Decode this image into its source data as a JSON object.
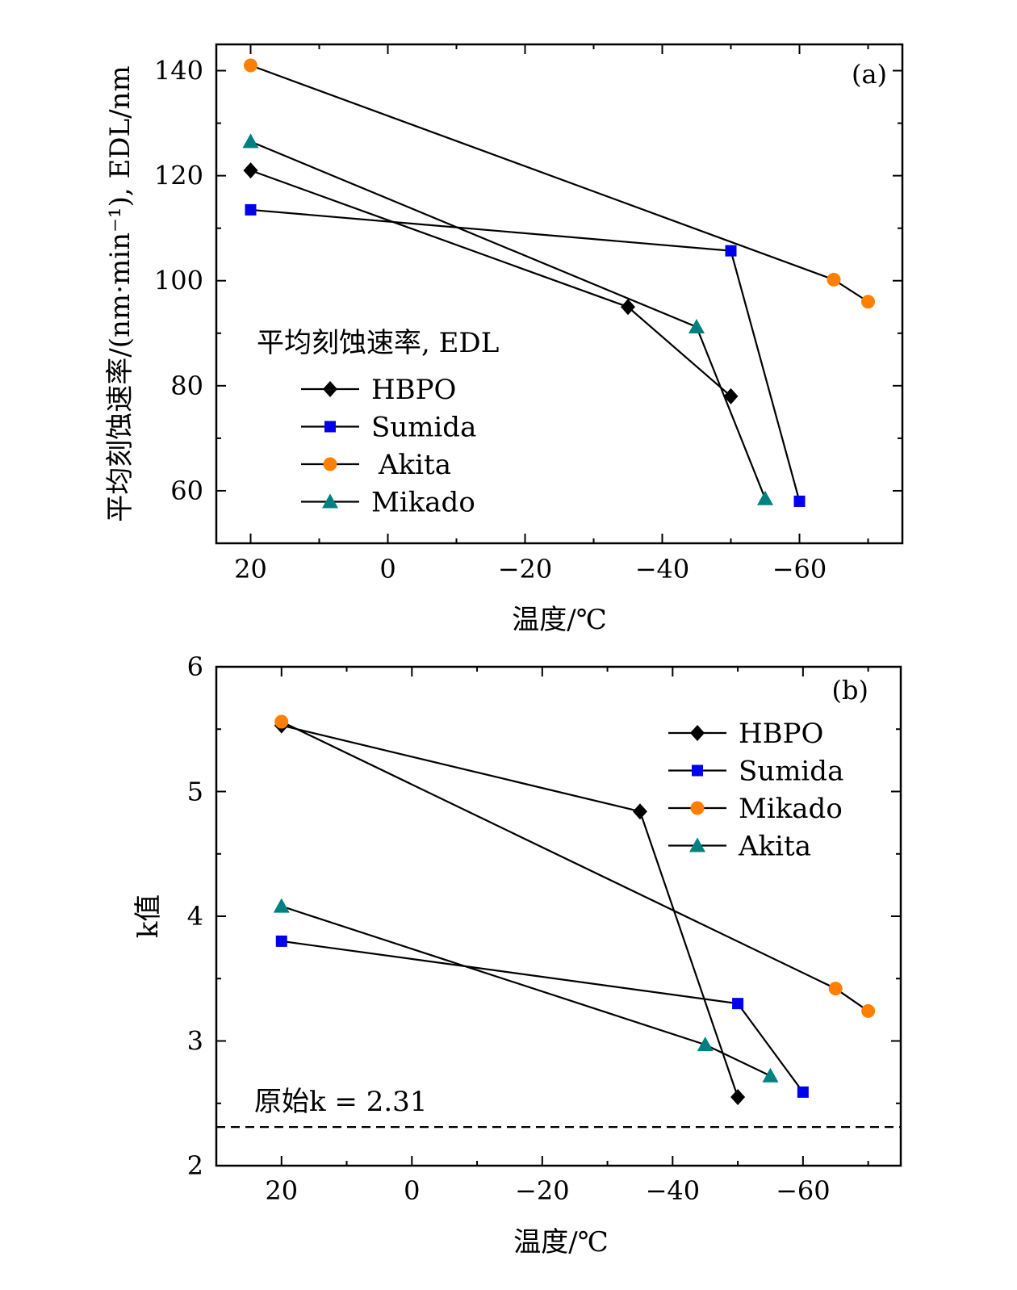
{
  "colors": {
    "hbpo": "#000000",
    "sumida": "#0000ee",
    "akita_orange": "#ff8000",
    "teal": "#008080"
  },
  "chart_data": [
    {
      "type": "line",
      "panel_label": "(a)",
      "xlabel": "温度/℃",
      "ylabel": "平均刻蚀速率/(nm·min⁻¹), EDL/nm",
      "xlim": [
        25,
        -75
      ],
      "ylim": [
        50,
        145
      ],
      "xticks": [
        20,
        0,
        -20,
        -40,
        -60
      ],
      "xtick_labels": [
        "20",
        "0",
        "−20",
        "−40",
        "−60"
      ],
      "yticks": [
        60,
        80,
        100,
        120,
        140
      ],
      "ytick_labels": [
        "60",
        "80",
        "100",
        "120",
        "140"
      ],
      "legend_title": "平均刻蚀速率, EDL",
      "legend_position": "center-left",
      "series": [
        {
          "name": "HBPO",
          "marker": "diamond",
          "color": "#000000",
          "x": [
            20,
            -35,
            -50
          ],
          "values": [
            121,
            95,
            78
          ]
        },
        {
          "name": "Sumida",
          "marker": "square",
          "color": "#0000ee",
          "x": [
            20,
            -50,
            -60
          ],
          "values": [
            113.5,
            105.7,
            58
          ]
        },
        {
          "name": "Akita",
          "marker": "circle",
          "color": "#ff8000",
          "x": [
            20,
            -65,
            -70
          ],
          "values": [
            141,
            100.2,
            96
          ]
        },
        {
          "name": "Mikado",
          "marker": "triangle",
          "color": "#008080",
          "x": [
            20,
            -45,
            -55
          ],
          "values": [
            126.5,
            91.2,
            58.5
          ]
        }
      ]
    },
    {
      "type": "line",
      "panel_label": "(b)",
      "xlabel": "温度/℃",
      "ylabel": "k值",
      "xlim": [
        30,
        -75
      ],
      "ylim": [
        2,
        6
      ],
      "xticks": [
        20,
        0,
        -20,
        -40,
        -60
      ],
      "xtick_labels": [
        "20",
        "0",
        "−20",
        "−40",
        "−60"
      ],
      "yticks": [
        2,
        3,
        4,
        5,
        6
      ],
      "ytick_labels": [
        "2",
        "3",
        "4",
        "5",
        "6"
      ],
      "legend_position": "top-right",
      "reference_line": {
        "value": 2.31,
        "label": "原始k = 2.31",
        "style": "dashed"
      },
      "series": [
        {
          "name": "HBPO",
          "marker": "diamond",
          "color": "#000000",
          "x": [
            20,
            -35,
            -50
          ],
          "values": [
            5.53,
            4.84,
            2.55
          ]
        },
        {
          "name": "Sumida",
          "marker": "square",
          "color": "#0000ee",
          "x": [
            20,
            -50,
            -60
          ],
          "values": [
            3.8,
            3.3,
            2.59
          ]
        },
        {
          "name": "Mikado",
          "marker": "circle",
          "color": "#ff8000",
          "x": [
            20,
            -65,
            -70
          ],
          "values": [
            5.56,
            3.42,
            3.24
          ]
        },
        {
          "name": "Akita",
          "marker": "triangle",
          "color": "#008080",
          "x": [
            20,
            -45,
            -55
          ],
          "values": [
            4.08,
            2.97,
            2.72
          ]
        }
      ]
    }
  ]
}
